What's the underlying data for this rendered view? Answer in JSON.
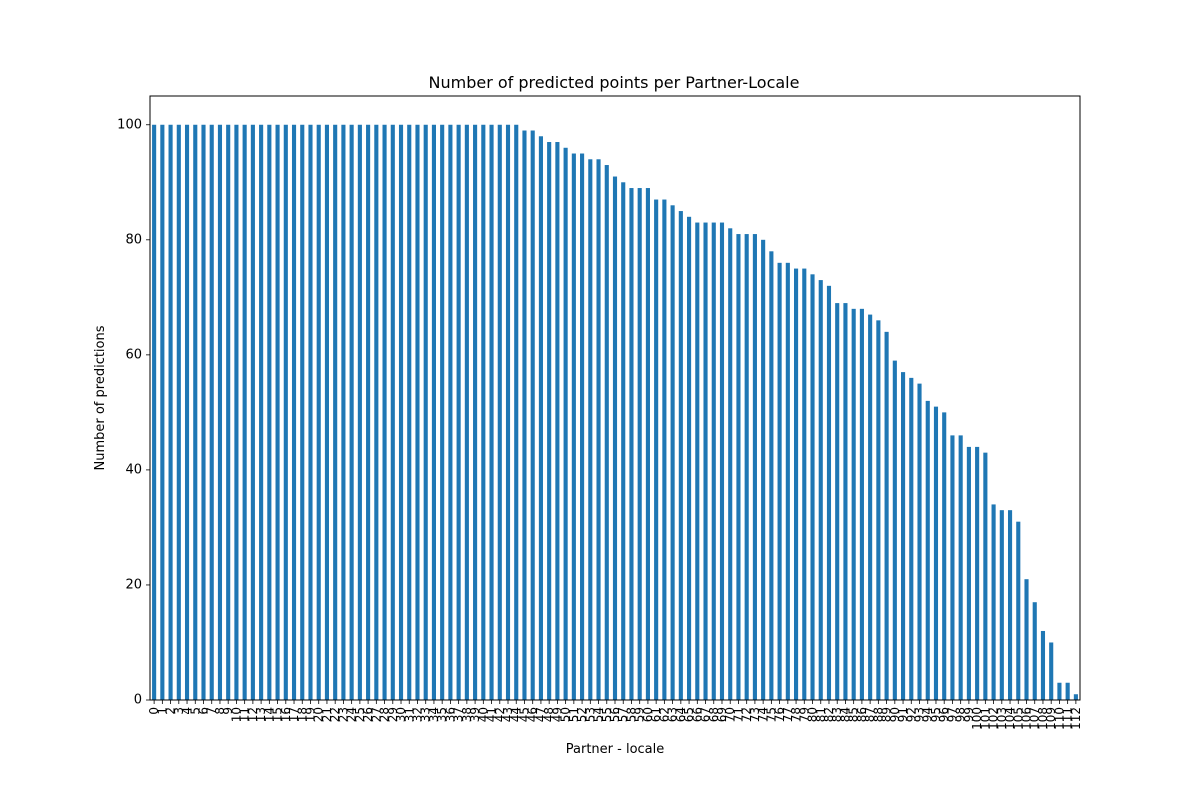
{
  "chart_data": {
    "type": "bar",
    "title": "Number of predicted points per Partner-Locale",
    "xlabel": "Partner - locale",
    "ylabel": "Number of predictions",
    "ylim": [
      0,
      105
    ],
    "yticks": [
      0,
      20,
      40,
      60,
      80,
      100
    ],
    "grid": false,
    "legend": "none",
    "bar_color": "#1f77b4",
    "categories": [
      "0",
      "1",
      "2",
      "3",
      "4",
      "5",
      "6",
      "7",
      "8",
      "9",
      "10",
      "11",
      "12",
      "13",
      "14",
      "15",
      "16",
      "17",
      "18",
      "19",
      "20",
      "21",
      "22",
      "23",
      "24",
      "25",
      "26",
      "27",
      "28",
      "29",
      "30",
      "31",
      "32",
      "33",
      "34",
      "35",
      "36",
      "37",
      "38",
      "39",
      "40",
      "41",
      "42",
      "43",
      "44",
      "45",
      "46",
      "47",
      "48",
      "49",
      "50",
      "51",
      "52",
      "53",
      "54",
      "55",
      "56",
      "57",
      "58",
      "59",
      "60",
      "61",
      "62",
      "63",
      "64",
      "65",
      "66",
      "67",
      "68",
      "69",
      "70",
      "71",
      "72",
      "73",
      "74",
      "75",
      "76",
      "77",
      "78",
      "79",
      "80",
      "81",
      "82",
      "83",
      "84",
      "85",
      "86",
      "87",
      "88",
      "89",
      "90",
      "91",
      "92",
      "93",
      "94",
      "95",
      "96",
      "97",
      "98",
      "99",
      "100",
      "101",
      "102",
      "103",
      "104",
      "105",
      "106",
      "107",
      "108",
      "109",
      "110",
      "111",
      "112"
    ],
    "values": [
      100,
      100,
      100,
      100,
      100,
      100,
      100,
      100,
      100,
      100,
      100,
      100,
      100,
      100,
      100,
      100,
      100,
      100,
      100,
      100,
      100,
      100,
      100,
      100,
      100,
      100,
      100,
      100,
      100,
      100,
      100,
      100,
      100,
      100,
      100,
      100,
      100,
      100,
      100,
      100,
      100,
      100,
      100,
      100,
      100,
      99,
      99,
      98,
      97,
      97,
      96,
      95,
      95,
      94,
      94,
      93,
      91,
      90,
      89,
      89,
      89,
      87,
      87,
      86,
      85,
      84,
      83,
      83,
      83,
      83,
      82,
      81,
      81,
      81,
      80,
      78,
      76,
      76,
      75,
      75,
      74,
      73,
      72,
      69,
      69,
      68,
      68,
      67,
      66,
      64,
      59,
      57,
      56,
      55,
      52,
      51,
      50,
      46,
      46,
      44,
      44,
      43,
      34,
      33,
      33,
      31,
      21,
      17,
      12,
      10,
      3,
      3,
      1
    ]
  }
}
